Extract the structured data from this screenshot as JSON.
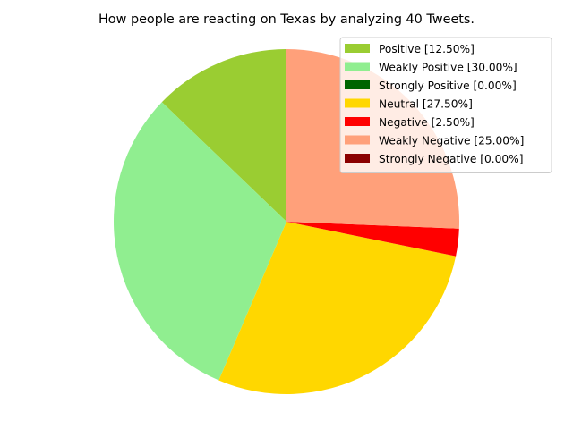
{
  "chart_data": {
    "type": "pie",
    "title": "How people are reacting on Texas by analyzing 40 Tweets.",
    "start_angle_deg": 90,
    "direction": "counterclockwise",
    "slices": [
      {
        "label": "Positive [12.50%]",
        "value": 12.5,
        "color": "#9acd32"
      },
      {
        "label": "Weakly Positive [30.00%]",
        "value": 30.0,
        "color": "#90ee90"
      },
      {
        "label": "Strongly Positive [0.00%]",
        "value": 0.0,
        "color": "#006400"
      },
      {
        "label": "Neutral [27.50%]",
        "value": 27.5,
        "color": "#ffd700"
      },
      {
        "label": "Negative [2.50%]",
        "value": 2.5,
        "color": "#ff0000"
      },
      {
        "label": "Weakly Negative [25.00%]",
        "value": 25.0,
        "color": "#ffa07a"
      },
      {
        "label": "Strongly Negative [0.00%]",
        "value": 0.0,
        "color": "#8b0000"
      }
    ],
    "legend_placement": "top-right"
  }
}
